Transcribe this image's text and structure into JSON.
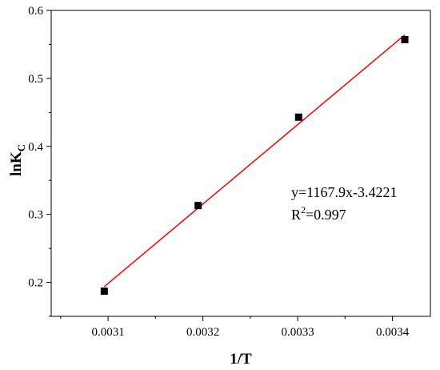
{
  "chart_data": {
    "type": "scatter",
    "xlabel": "1/T",
    "ylabel_main": "lnK",
    "ylabel_sub": "C",
    "xlim": [
      0.00304,
      0.00344
    ],
    "ylim": [
      0.15,
      0.6
    ],
    "xticks": [
      0.0031,
      0.0032,
      0.0033,
      0.0034
    ],
    "yticks": [
      0.2,
      0.3,
      0.4,
      0.5,
      0.6
    ],
    "xtick_labels": [
      "0.0031",
      "0.0032",
      "0.0033",
      "0.0034"
    ],
    "ytick_labels": [
      "0.2",
      "0.3",
      "0.4",
      "0.5",
      "0.6"
    ],
    "series": [
      {
        "points": [
          {
            "x": 0.003096,
            "y": 0.187
          },
          {
            "x": 0.003195,
            "y": 0.313
          },
          {
            "x": 0.003301,
            "y": 0.443
          },
          {
            "x": 0.003413,
            "y": 0.557
          }
        ],
        "marker": "square",
        "color": "#000000"
      }
    ],
    "fit": {
      "slope": 1167.9,
      "intercept": -3.4221,
      "x_range": [
        0.003096,
        0.003413
      ],
      "color": "#ff0000"
    },
    "annotation": {
      "equation": "y=1167.9x-3.4221",
      "r2_base": "R",
      "r2_sup": "2",
      "r2_value": "=0.997"
    },
    "grid": false,
    "legend": "none"
  }
}
